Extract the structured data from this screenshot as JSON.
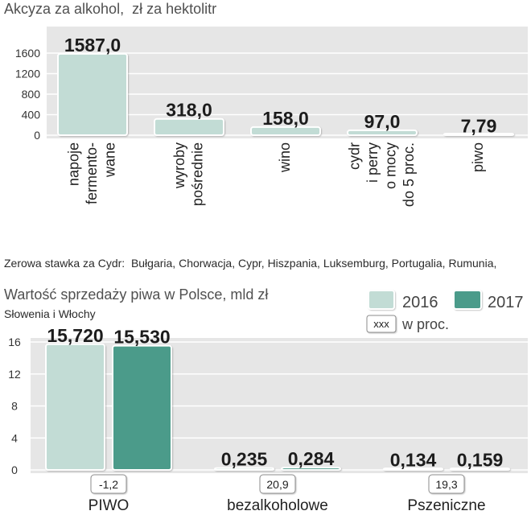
{
  "chart_data": [
    {
      "type": "bar",
      "title": "Akcyza za alkohol,  zł za hektolitr",
      "categories": [
        [
          "napoje",
          "fermento-",
          "wane"
        ],
        [
          "wyroby",
          "pośrednie"
        ],
        [
          "wino"
        ],
        [
          "cydr",
          "i perry",
          "o mocy",
          "do 5 proc."
        ],
        [
          "piwo"
        ]
      ],
      "values": [
        1587.0,
        318.0,
        158.0,
        97.0,
        7.79
      ],
      "value_labels": [
        "1587,0",
        "318,0",
        "158,0",
        "97,0",
        "7,79"
      ],
      "yticks": [
        0,
        400,
        800,
        1200,
        1600
      ],
      "ylim": [
        0,
        1600
      ],
      "grid": true,
      "color": "#c2dcd5",
      "note": [
        "Zerowa stawka za Cydr:  Bułgaria, Chorwacja, Cypr, Hiszpania, Luksemburg, Portugalia, Rumunia,",
        "Słowenia i Włochy"
      ]
    },
    {
      "type": "bar",
      "title": "Wartość sprzedaży piwa w Polsce, mld zł",
      "categories": [
        "PIWO",
        "bezalkoholowe",
        "Pszeniczne"
      ],
      "series": [
        {
          "name": "2016",
          "values": [
            15.72,
            0.235,
            0.134
          ],
          "value_labels": [
            "15,720",
            "0,235",
            "0,134"
          ],
          "color": "#c2dcd5"
        },
        {
          "name": "2017",
          "values": [
            15.53,
            0.284,
            0.159
          ],
          "value_labels": [
            "15,530",
            "0,284",
            "0,159"
          ],
          "color": "#4c9b8a"
        }
      ],
      "change_pct": {
        "legend_sample": "xxx",
        "legend_label": "w proc.",
        "values": [
          "-1,2",
          "20,9",
          "19,3"
        ]
      },
      "yticks": [
        0,
        4,
        8,
        12,
        16
      ],
      "ylim": [
        0,
        16
      ],
      "grid": true,
      "legend_position": "top-right"
    }
  ]
}
